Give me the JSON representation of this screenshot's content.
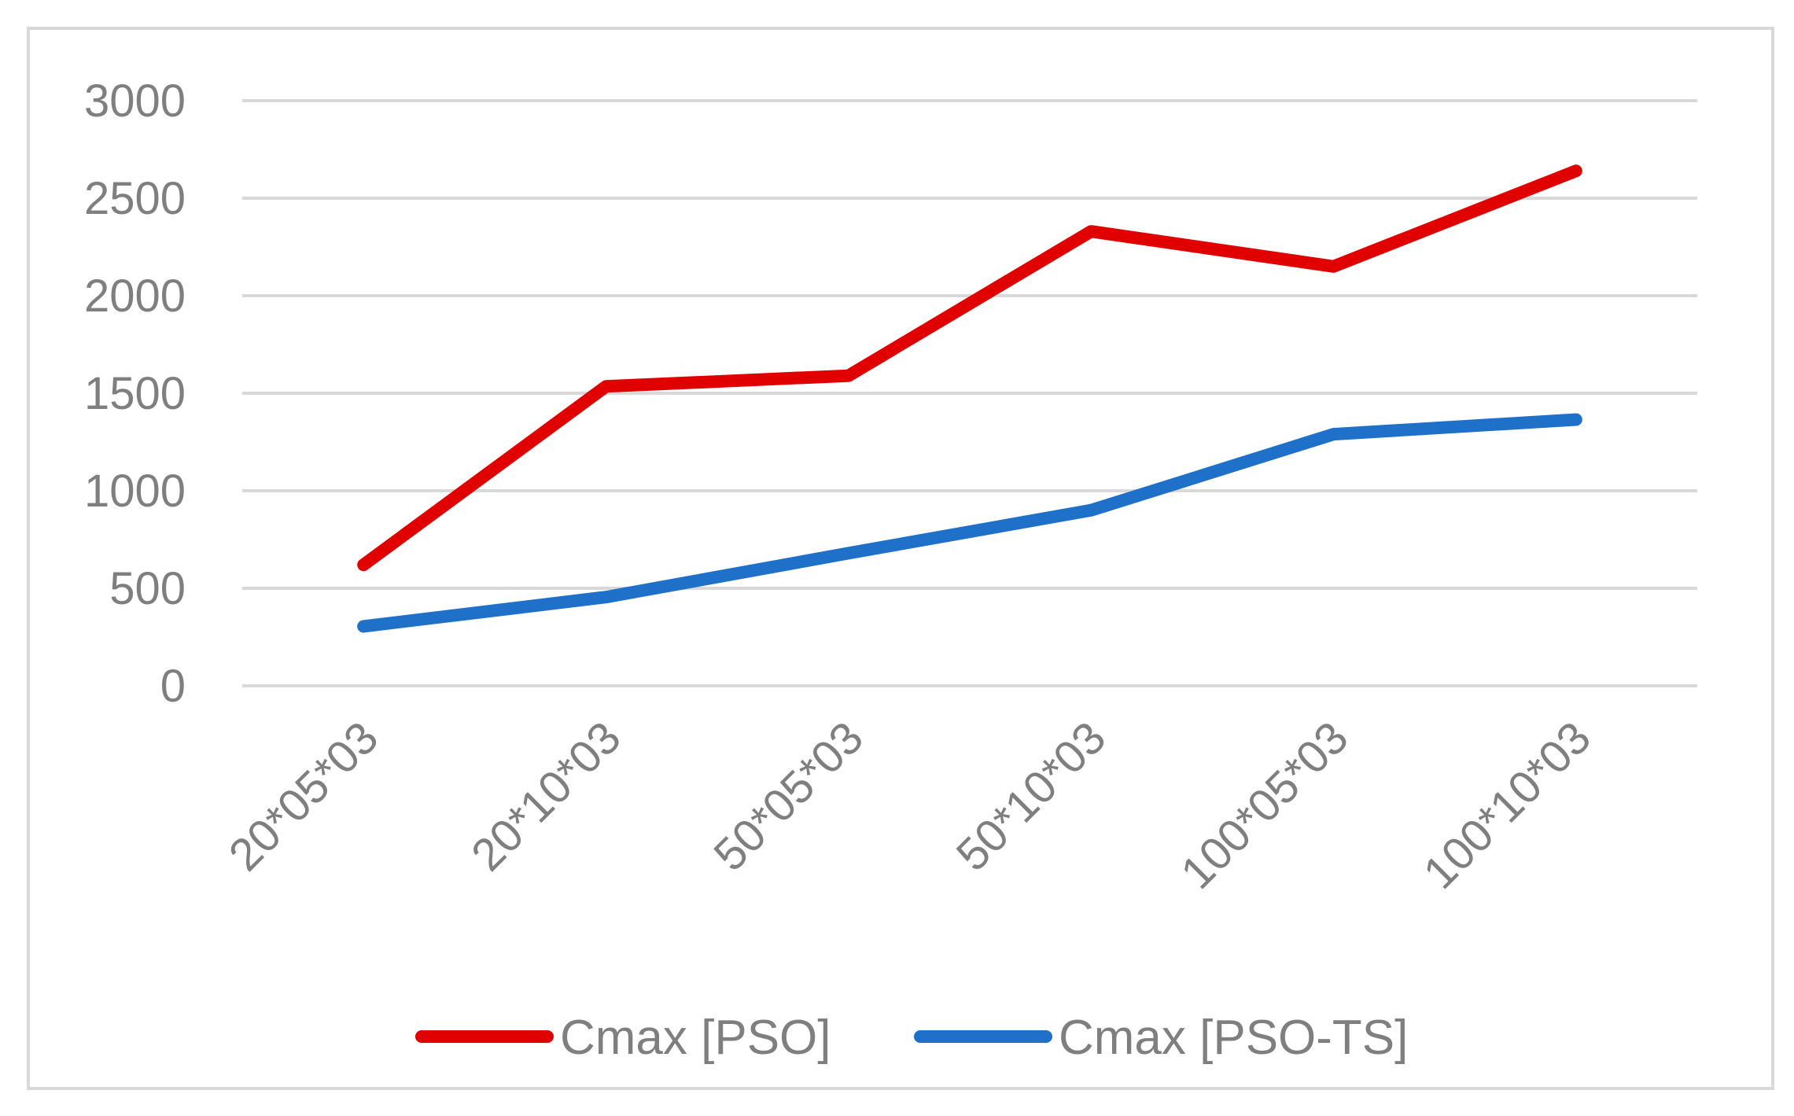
{
  "chart_data": {
    "type": "line",
    "categories": [
      "20*05*03",
      "20*10*03",
      "50*05*03",
      "50*10*03",
      "100*05*03",
      "100*10*03"
    ],
    "series": [
      {
        "name": "Cmax [PSO]",
        "color": "#e00000",
        "values": [
          620,
          1535,
          1590,
          2330,
          2150,
          2640
        ]
      },
      {
        "name": "Cmax [PSO-TS]",
        "color": "#1f70c8",
        "values": [
          305,
          455,
          680,
          900,
          1290,
          1365
        ]
      }
    ],
    "ylim": [
      0,
      3000
    ],
    "yticks": [
      0,
      500,
      1000,
      1500,
      2000,
      2500,
      3000
    ],
    "grid": true,
    "legend_position": "bottom"
  }
}
